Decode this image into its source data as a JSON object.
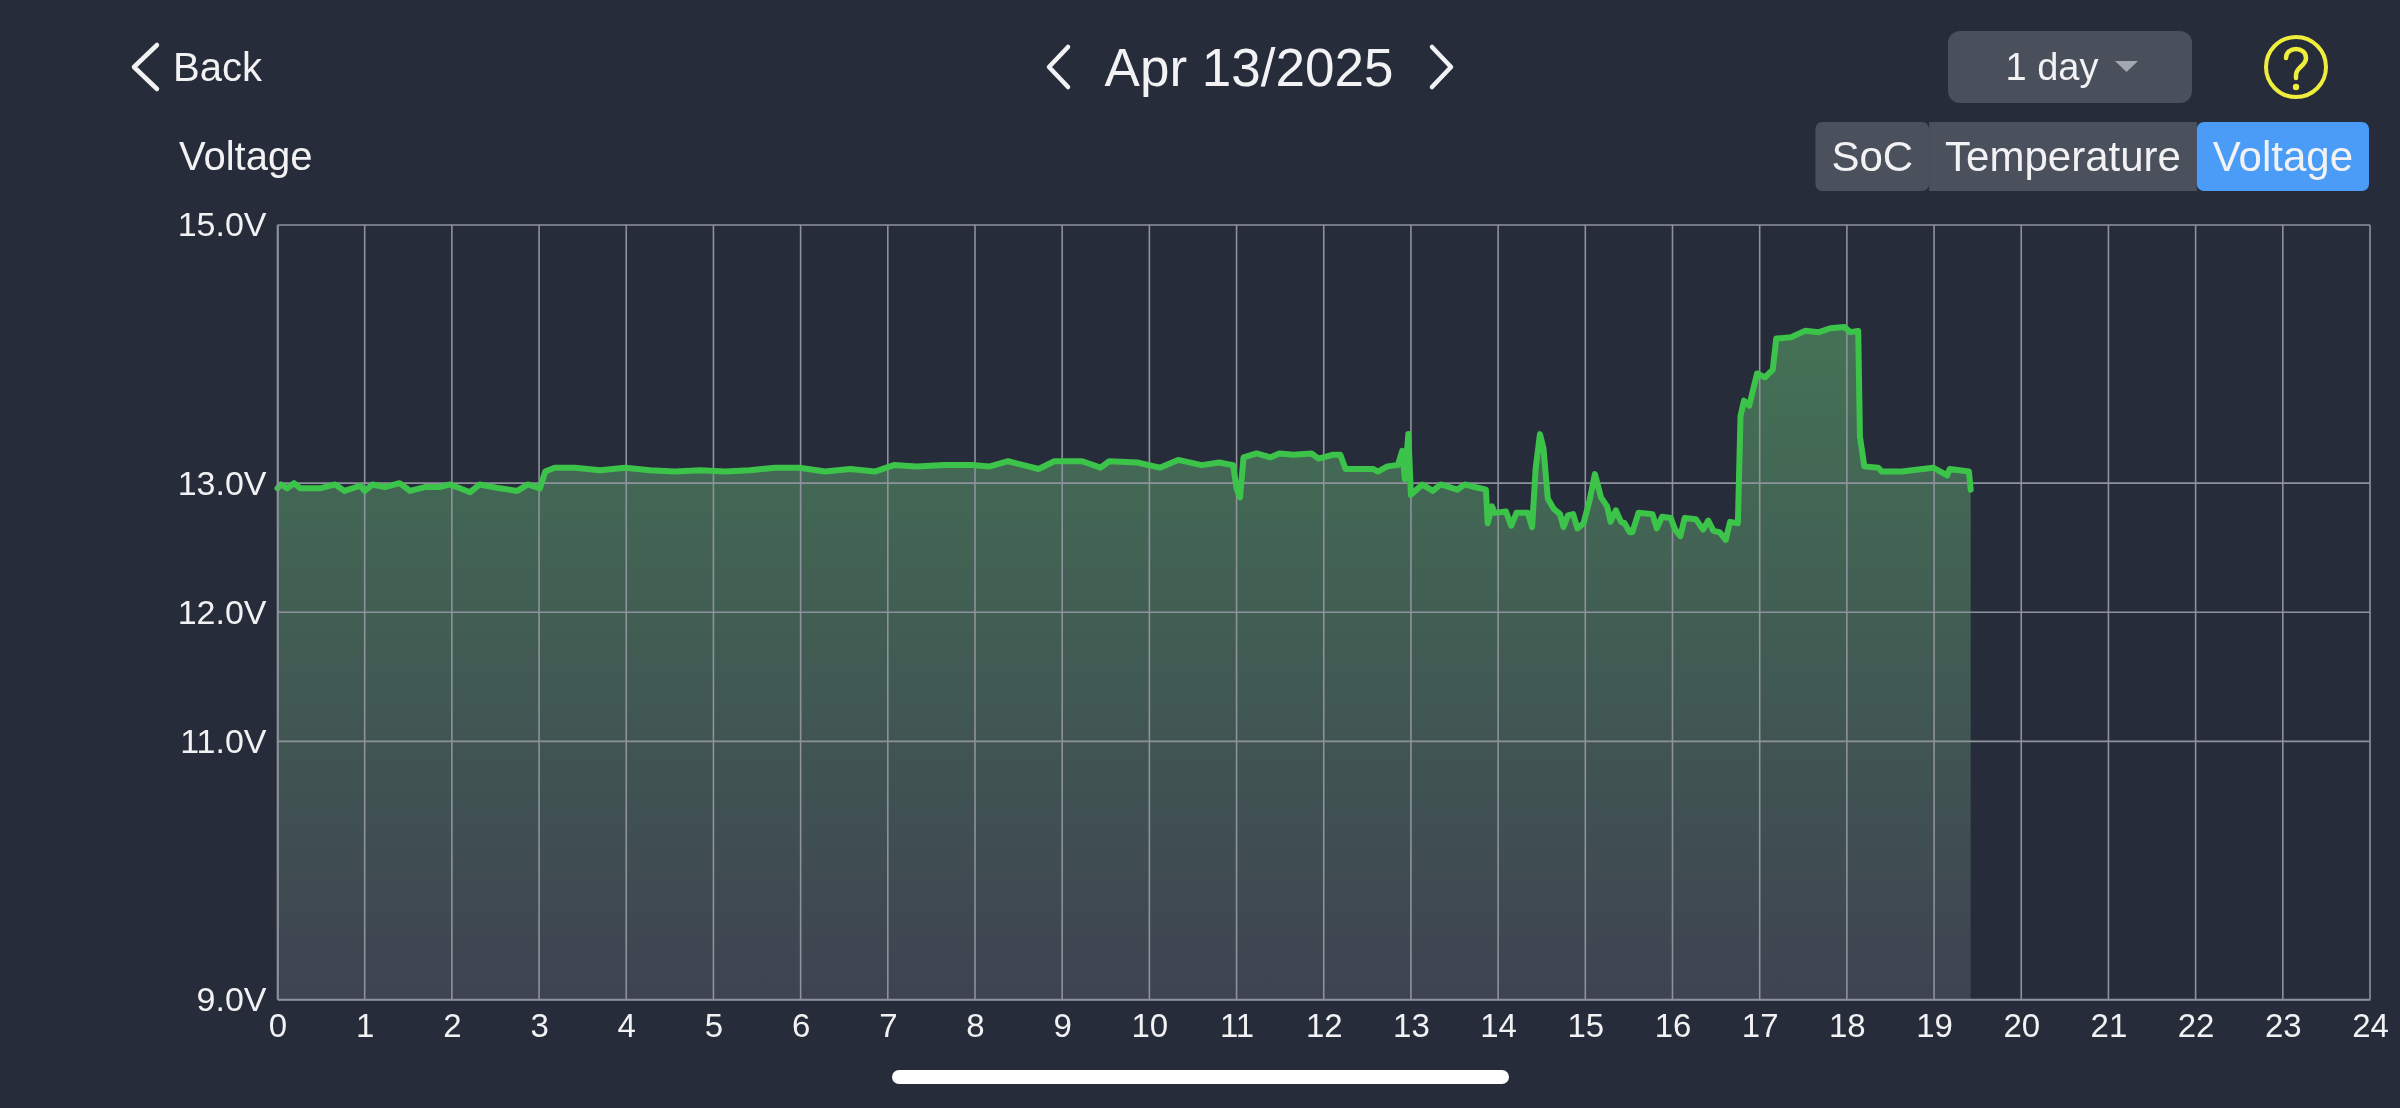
{
  "chart_data": {
    "type": "area",
    "title": "Apr 13/2025",
    "ylabel": "Voltage",
    "annotations": [
      "Back",
      "1 day",
      "SoC",
      "Temperature",
      "Voltage"
    ],
    "color": "#3cc44a",
    "x": [
      0.0,
      0.04,
      0.11,
      0.19,
      0.26,
      0.49,
      0.66,
      0.77,
      0.95,
      1.0,
      1.09,
      1.23,
      1.4,
      1.52,
      1.69,
      1.86,
      1.98,
      2.21,
      2.32,
      2.55,
      2.75,
      2.87,
      3.01,
      3.07,
      3.18,
      3.41,
      3.7,
      3.99,
      4.27,
      4.56,
      4.85,
      5.13,
      5.42,
      5.71,
      5.99,
      6.28,
      6.57,
      6.85,
      7.07,
      7.33,
      7.65,
      7.96,
      8.17,
      8.38,
      8.73,
      8.91,
      9.23,
      9.44,
      9.54,
      9.86,
      10.12,
      10.33,
      10.6,
      10.8,
      10.96,
      11.0,
      11.04,
      11.08,
      11.23,
      11.39,
      11.49,
      11.65,
      11.86,
      11.94,
      12.1,
      12.19,
      12.25,
      12.33,
      12.57,
      12.62,
      12.73,
      12.85,
      12.9,
      12.93,
      12.97,
      13.0,
      13.13,
      13.25,
      13.34,
      13.44,
      13.53,
      13.62,
      13.73,
      13.86,
      13.88,
      13.93,
      13.96,
      14.09,
      14.15,
      14.21,
      14.34,
      14.39,
      14.43,
      14.48,
      14.52,
      14.57,
      14.64,
      14.71,
      14.75,
      14.8,
      14.86,
      14.91,
      14.98,
      15.05,
      15.11,
      15.18,
      15.25,
      15.29,
      15.35,
      15.41,
      15.45,
      15.51,
      15.54,
      15.61,
      15.77,
      15.82,
      15.88,
      15.98,
      16.03,
      16.09,
      16.14,
      16.27,
      16.35,
      16.41,
      16.47,
      16.54,
      16.61,
      16.66,
      16.75,
      16.78,
      16.82,
      16.88,
      16.97,
      17.06,
      17.15,
      17.19,
      17.36,
      17.52,
      17.68,
      17.81,
      17.97,
      18.04,
      18.13,
      18.15,
      18.2,
      18.36,
      18.4,
      18.63,
      18.99,
      19.15,
      19.18,
      19.4,
      19.42
    ],
    "values": [
      12.96,
      12.99,
      12.96,
      13.0,
      12.96,
      12.96,
      12.99,
      12.94,
      12.98,
      12.94,
      12.99,
      12.97,
      13.0,
      12.94,
      12.97,
      12.97,
      12.99,
      12.93,
      12.99,
      12.96,
      12.94,
      12.99,
      12.96,
      13.09,
      13.12,
      13.12,
      13.1,
      13.12,
      13.1,
      13.09,
      13.1,
      13.09,
      13.1,
      13.12,
      13.12,
      13.09,
      13.11,
      13.09,
      13.14,
      13.13,
      13.14,
      13.14,
      13.13,
      13.17,
      13.11,
      13.17,
      13.17,
      13.12,
      13.17,
      13.16,
      13.12,
      13.18,
      13.14,
      13.16,
      13.14,
      12.96,
      12.89,
      13.2,
      13.23,
      13.2,
      13.23,
      13.22,
      13.23,
      13.19,
      13.22,
      13.22,
      13.11,
      13.11,
      13.11,
      13.09,
      13.13,
      13.14,
      13.25,
      13.03,
      13.38,
      12.91,
      12.99,
      12.94,
      12.99,
      12.97,
      12.95,
      12.99,
      12.97,
      12.95,
      12.69,
      12.82,
      12.77,
      12.78,
      12.67,
      12.77,
      12.77,
      12.66,
      13.11,
      13.38,
      13.27,
      12.88,
      12.8,
      12.76,
      12.66,
      12.75,
      12.76,
      12.65,
      12.69,
      12.87,
      13.07,
      12.89,
      12.82,
      12.7,
      12.79,
      12.7,
      12.69,
      12.62,
      12.62,
      12.77,
      12.76,
      12.65,
      12.74,
      12.73,
      12.64,
      12.59,
      12.73,
      12.72,
      12.64,
      12.71,
      12.63,
      12.62,
      12.56,
      12.7,
      12.69,
      13.52,
      13.64,
      13.6,
      13.85,
      13.82,
      13.88,
      14.12,
      14.13,
      14.18,
      14.17,
      14.2,
      14.21,
      14.17,
      14.18,
      13.36,
      13.13,
      13.12,
      13.09,
      13.09,
      13.12,
      13.06,
      13.11,
      13.09,
      12.95
    ],
    "xlim": [
      0,
      24
    ],
    "xticks": [
      0,
      1,
      2,
      3,
      4,
      5,
      6,
      7,
      8,
      9,
      10,
      11,
      12,
      13,
      14,
      15,
      16,
      17,
      18,
      19,
      20,
      21,
      22,
      23,
      24
    ],
    "ylim": [
      9,
      15
    ],
    "yticks": [
      {
        "value": 9,
        "label": "9.0V"
      },
      {
        "value": 11,
        "label": "11.0V"
      },
      {
        "value": 12,
        "label": "12.0V"
      },
      {
        "value": 13,
        "label": "13.0V"
      },
      {
        "value": 15,
        "label": "15.0V"
      }
    ],
    "grid": true
  }
}
